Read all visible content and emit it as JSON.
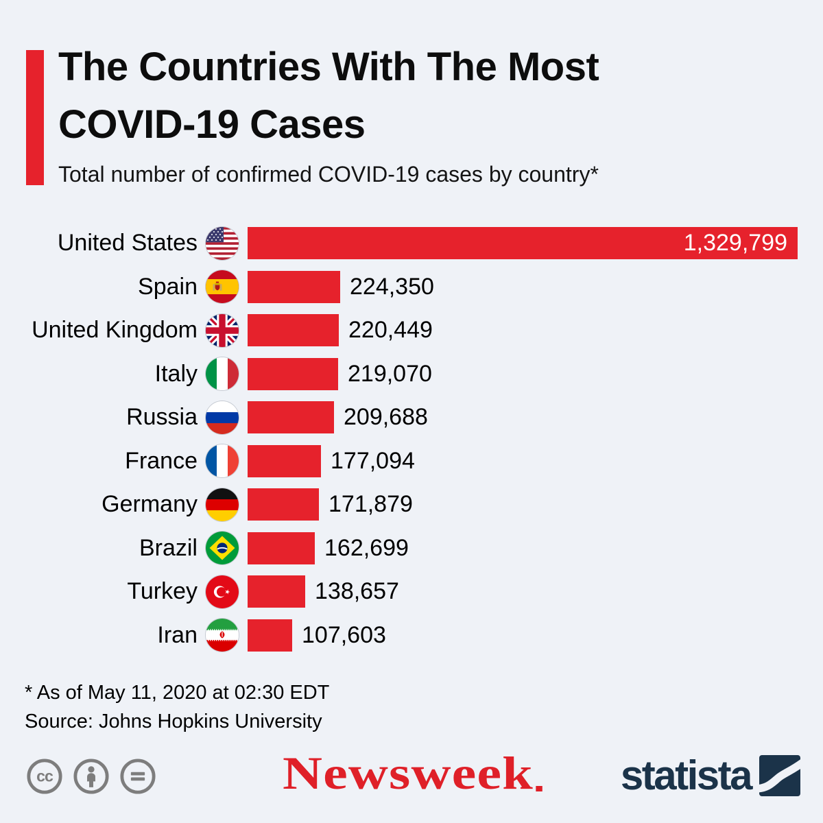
{
  "title": {
    "line1": "The Countries With The Most",
    "line2": "COVID-19 Cases"
  },
  "subtitle": "Total number of confirmed COVID-19 cases by country*",
  "chart_data": {
    "type": "bar",
    "orientation": "horizontal",
    "title": "The Countries With The Most COVID-19 Cases",
    "subtitle": "Total number of confirmed COVID-19 cases by country*",
    "categories": [
      "United States",
      "Spain",
      "United Kingdom",
      "Italy",
      "Russia",
      "France",
      "Germany",
      "Brazil",
      "Turkey",
      "Iran"
    ],
    "values": [
      1329799,
      224350,
      220449,
      219070,
      209688,
      177094,
      171879,
      162699,
      138657,
      107603
    ],
    "value_labels": [
      "1,329,799",
      "224,350",
      "220,449",
      "219,070",
      "209,688",
      "177,094",
      "171,879",
      "162,699",
      "138,657",
      "107,603"
    ],
    "flags": [
      "us-flag-icon",
      "spain-flag-icon",
      "uk-flag-icon",
      "italy-flag-icon",
      "russia-flag-icon",
      "france-flag-icon",
      "germany-flag-icon",
      "brazil-flag-icon",
      "turkey-flag-icon",
      "iran-flag-icon"
    ],
    "bar_color": "#e6222c",
    "value_label_inside_for_max": true,
    "xlim": [
      0,
      1329799
    ],
    "grid": false,
    "legend": false
  },
  "footnote": "* As of May 11, 2020 at 02:30 EDT",
  "source": "Source: Johns Hopkins University",
  "footer": {
    "license_icons": [
      {
        "name": "cc-icon",
        "label": "cc"
      },
      {
        "name": "attribution-person-icon",
        "label": ""
      },
      {
        "name": "equals-icon",
        "label": ""
      }
    ],
    "newsweek": "Newsweek",
    "statista": "statista"
  },
  "colors": {
    "background": "#eff2f7",
    "bar_red": "#e6222c",
    "newsweek_red": "#df2028",
    "statista_navy": "#1b3349",
    "license_gray": "#7d7d7d",
    "text_black": "#000000"
  }
}
